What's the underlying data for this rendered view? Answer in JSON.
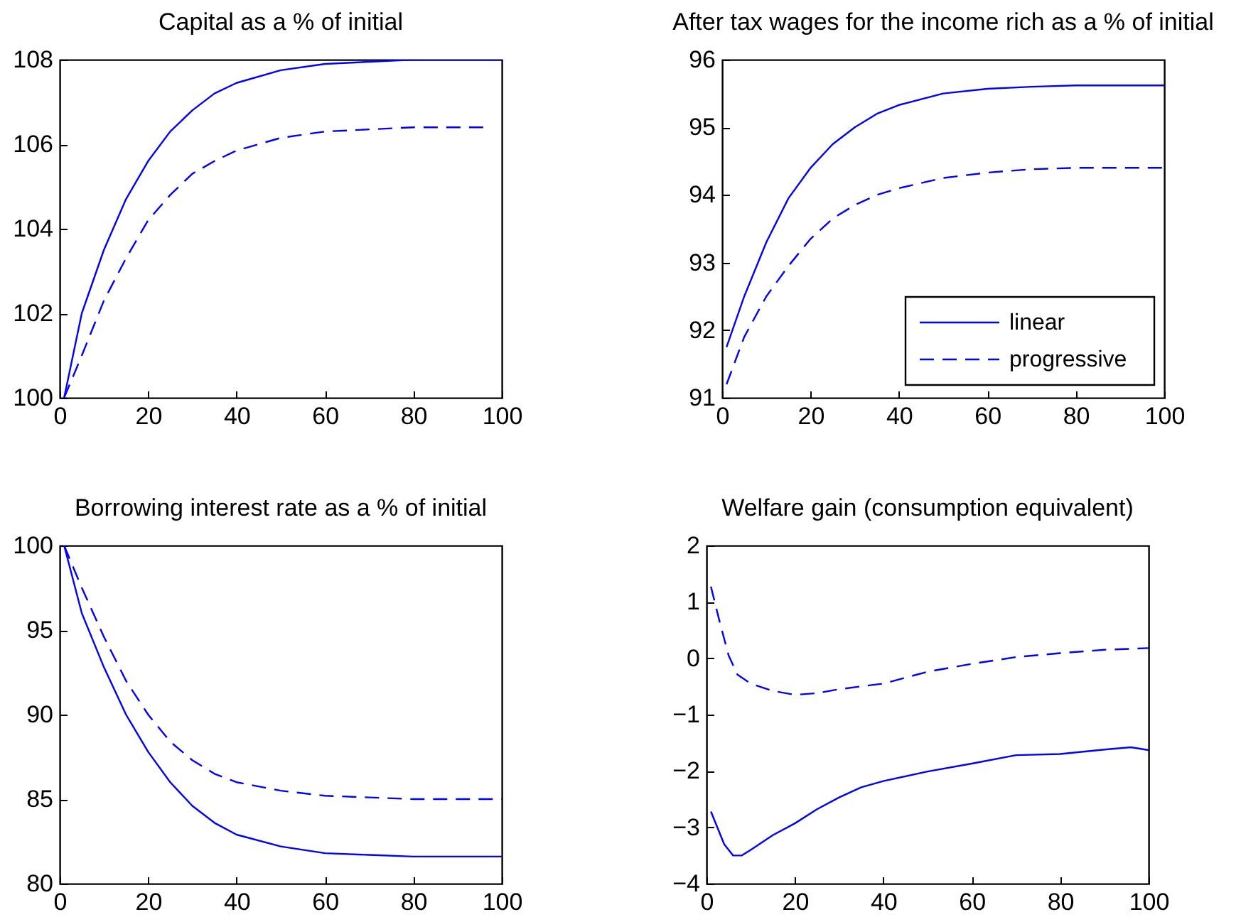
{
  "chart_data": [
    {
      "type": "line",
      "title": "Capital as a % of initial",
      "xlim": [
        0,
        100
      ],
      "xticks": [
        0,
        20,
        40,
        60,
        80,
        100
      ],
      "ylim": [
        100,
        108
      ],
      "yticks": [
        100,
        102,
        104,
        106,
        108
      ],
      "grid": false,
      "legend": false,
      "series": [
        {
          "color": "#0000ff",
          "line_style": "solid",
          "x": [
            1,
            5,
            10,
            15,
            20,
            25,
            30,
            35,
            40,
            50,
            60,
            70,
            80,
            100
          ],
          "values": [
            100,
            102,
            103.5,
            104.7,
            105.6,
            106.3,
            106.8,
            107.2,
            107.45,
            107.75,
            107.9,
            107.95,
            108,
            108
          ]
        },
        {
          "color": "#0000ff",
          "line_style": "dashed",
          "x": [
            1,
            5,
            10,
            15,
            20,
            25,
            30,
            35,
            40,
            50,
            60,
            70,
            80,
            96
          ],
          "values": [
            100,
            101,
            102.3,
            103.3,
            104.2,
            104.8,
            105.3,
            105.6,
            105.85,
            106.15,
            106.3,
            106.35,
            106.4,
            106.4
          ]
        }
      ]
    },
    {
      "type": "line",
      "title": "After tax wages for the income rich as a % of initial",
      "xlim": [
        0,
        100
      ],
      "xticks": [
        0,
        20,
        40,
        60,
        80,
        100
      ],
      "ylim": [
        91,
        96
      ],
      "yticks": [
        91,
        92,
        93,
        94,
        95,
        96
      ],
      "grid": false,
      "legend": "bottom right",
      "series": [
        {
          "name": "linear",
          "color": "#0000ff",
          "line_style": "solid",
          "x": [
            1,
            5,
            10,
            15,
            20,
            25,
            30,
            35,
            40,
            50,
            60,
            70,
            80,
            100
          ],
          "values": [
            91.75,
            92.5,
            93.3,
            93.95,
            94.4,
            94.75,
            95.0,
            95.2,
            95.33,
            95.5,
            95.57,
            95.6,
            95.62,
            95.62
          ]
        },
        {
          "name": "progressive",
          "color": "#0000ff",
          "line_style": "dashed",
          "x": [
            1,
            5,
            10,
            15,
            20,
            25,
            30,
            35,
            40,
            50,
            60,
            70,
            80,
            100
          ],
          "values": [
            91.2,
            91.9,
            92.5,
            92.95,
            93.35,
            93.65,
            93.85,
            94.0,
            94.1,
            94.25,
            94.33,
            94.38,
            94.4,
            94.4
          ]
        }
      ]
    },
    {
      "type": "line",
      "title": "Borrowing interest rate as a % of initial",
      "xlim": [
        0,
        100
      ],
      "xticks": [
        0,
        20,
        40,
        60,
        80,
        100
      ],
      "ylim": [
        80,
        100
      ],
      "yticks": [
        80,
        85,
        90,
        95,
        100
      ],
      "grid": false,
      "legend": false,
      "series": [
        {
          "color": "#0000ff",
          "line_style": "solid",
          "x": [
            1,
            5,
            10,
            15,
            20,
            25,
            30,
            35,
            40,
            50,
            60,
            70,
            80,
            100
          ],
          "values": [
            100,
            96,
            92.8,
            90,
            87.8,
            86,
            84.6,
            83.6,
            82.9,
            82.2,
            81.8,
            81.7,
            81.6,
            81.6
          ]
        },
        {
          "color": "#0000ff",
          "line_style": "dashed",
          "x": [
            1,
            5,
            10,
            15,
            20,
            25,
            30,
            35,
            40,
            50,
            60,
            70,
            80,
            100
          ],
          "values": [
            100,
            97.5,
            94.6,
            92,
            90,
            88.4,
            87.3,
            86.5,
            86,
            85.5,
            85.2,
            85.1,
            85,
            85
          ]
        }
      ]
    },
    {
      "type": "line",
      "title": "Welfare gain (consumption equivalent)",
      "xlim": [
        0,
        100
      ],
      "xticks": [
        0,
        20,
        40,
        60,
        80,
        100
      ],
      "ylim": [
        -4,
        2
      ],
      "yticks": [
        -4,
        -3,
        -2,
        -1,
        0,
        1,
        2
      ],
      "grid": false,
      "legend": false,
      "series": [
        {
          "color": "#0000ff",
          "line_style": "solid",
          "x": [
            1,
            4,
            6,
            8,
            10,
            15,
            20,
            25,
            30,
            35,
            40,
            50,
            60,
            70,
            80,
            90,
            96,
            100
          ],
          "values": [
            -2.72,
            -3.3,
            -3.5,
            -3.5,
            -3.4,
            -3.14,
            -2.93,
            -2.68,
            -2.47,
            -2.29,
            -2.18,
            -2.01,
            -1.87,
            -1.72,
            -1.7,
            -1.62,
            -1.58,
            -1.63
          ]
        },
        {
          "color": "#0000ff",
          "line_style": "dashed",
          "x": [
            1,
            3,
            5,
            7,
            10,
            15,
            20,
            25,
            30,
            40,
            50,
            60,
            70,
            80,
            90,
            100
          ],
          "values": [
            1.27,
            0.64,
            0.05,
            -0.29,
            -0.45,
            -0.58,
            -0.65,
            -0.62,
            -0.55,
            -0.45,
            -0.24,
            -0.1,
            0.02,
            0.09,
            0.15,
            0.18
          ]
        }
      ]
    }
  ]
}
